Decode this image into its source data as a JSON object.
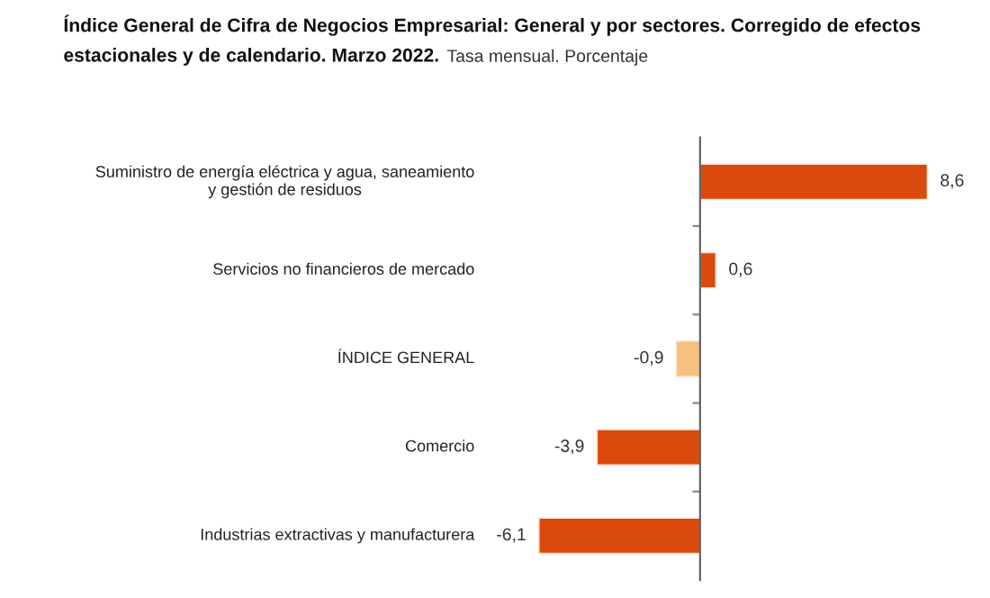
{
  "chart_data": {
    "type": "bar",
    "orientation": "horizontal",
    "title": "Índice General de Cifra de Negocios Empresarial: General y por sectores. Corregido de efectos estacionales y de calendario. Marzo 2022.",
    "subtitle": "Tasa mensual. Porcentaje",
    "categories": [
      "Suministro de energía eléctrica y agua, saneamiento y gestión de residuos",
      "Servicios no financieros de mercado",
      "ÍNDICE GENERAL",
      "Comercio",
      "Industrias extractivas y manufacturera"
    ],
    "values": [
      8.6,
      0.6,
      -0.9,
      -3.9,
      -6.1
    ],
    "value_labels": [
      "8,6",
      "0,6",
      "-0,9",
      "-3,9",
      "-6,1"
    ],
    "colors": [
      "#d94a0c",
      "#d94a0c",
      "#f5c27f",
      "#d94a0c",
      "#d94a0c"
    ],
    "grid": false,
    "legend": false
  }
}
